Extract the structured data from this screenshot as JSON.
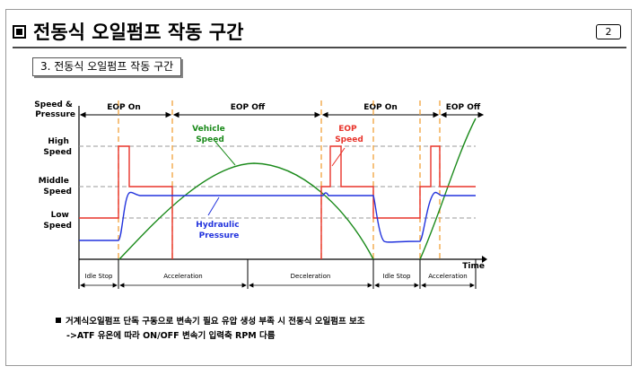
{
  "page": {
    "title": "전동식 오일펌프 작동 구간",
    "page_number": "2",
    "section_label": "3. 전동식 오일펌프 작동 구간"
  },
  "diagram": {
    "y_axis_label": [
      "Speed &",
      "Pressure"
    ],
    "x_axis_label": "Time",
    "levels": [
      {
        "label": [
          "High",
          "Speed"
        ]
      },
      {
        "label": [
          "Middle",
          "Speed"
        ]
      },
      {
        "label": [
          "Low",
          "Speed"
        ]
      }
    ],
    "top_regions": [
      "EOP On",
      "EOP Off",
      "EOP On",
      "EOP Off"
    ],
    "phases": [
      "Idle Stop",
      "Acceleration",
      "Deceleration",
      "Idle Stop",
      "Acceleration"
    ],
    "curve_labels": {
      "vehicle_speed": [
        "Vehicle",
        "Speed"
      ],
      "eop_speed": [
        "EOP",
        "Speed"
      ],
      "hydraulic_pressure": [
        "Hydraulic",
        "Pressure"
      ]
    },
    "colors": {
      "vehicle_speed": "#1a8a1a",
      "eop_speed": "#e8332a",
      "hydraulic_pressure": "#2233dd",
      "region_divider": "#f2a23a",
      "reference_line": "#9a9a9a"
    }
  },
  "notes": {
    "line1": "거계식오일펌프 단독 구동으로 변속기 필요 유압 생성 부족 시 전동식 오일펌프 보조",
    "line2": "->ATF 유온에 따라 ON/OFF 변속기 입력축 RPM 다름"
  }
}
